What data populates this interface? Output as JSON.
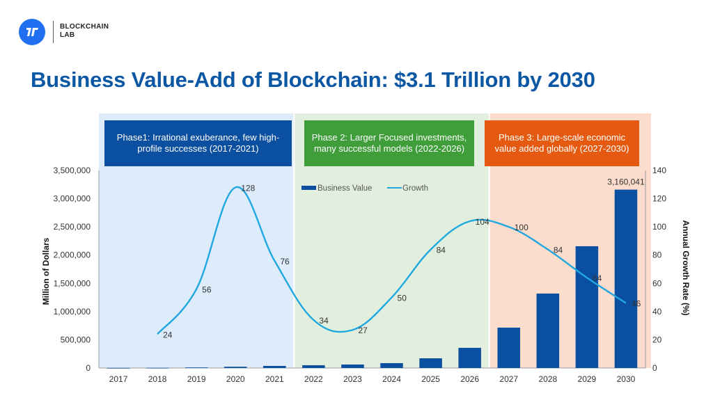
{
  "brand": {
    "logo_icon": "blockchain-lab-logo-icon",
    "line1": "BLOCKCHAIN",
    "line2": "LAB",
    "color": "#1f6ff0"
  },
  "title": "Business Value-Add of Blockchain: $3.1 Trillion by 2030",
  "phases": [
    {
      "label": "Phase1: Irrational exuberance, few high-profile successes (2017-2021)",
      "color": "#0b4fa0",
      "background": "#ddebfb",
      "years": [
        "2017",
        "2021"
      ]
    },
    {
      "label": "Phase 2: Larger Focused investments, many successful models (2022-2026)",
      "color": "#3f9e3a",
      "background": "#e2efdf",
      "years": [
        "2022",
        "2026"
      ]
    },
    {
      "label": "Phase 3: Large-scale economic value added globally (2027-2030)",
      "color": "#e55a10",
      "background": "#fcdccd",
      "years": [
        "2027",
        "2030"
      ]
    }
  ],
  "chart_data": {
    "type": "bar+line",
    "title": "Business Value-Add of Blockchain: $3.1 Trillion by 2030",
    "categories": [
      "2017",
      "2018",
      "2019",
      "2020",
      "2021",
      "2022",
      "2023",
      "2024",
      "2025",
      "2026",
      "2027",
      "2028",
      "2029",
      "2030"
    ],
    "series": [
      {
        "name": "Business Value",
        "type": "bar",
        "axis": "left",
        "color": "#0b4fa0",
        "values": [
          1000,
          3000,
          10000,
          22000,
          37000,
          49000,
          62000,
          86000,
          172000,
          357000,
          715000,
          1319000,
          2157000,
          3160041
        ],
        "data_labels": {
          "2030": "3,160,041"
        }
      },
      {
        "name": "Growth",
        "type": "line",
        "axis": "right",
        "smooth": true,
        "color": "#1fa8df",
        "x": [
          "2018",
          "2019",
          "2020",
          "2021",
          "2022",
          "2023",
          "2024",
          "2025",
          "2026",
          "2027",
          "2028",
          "2029",
          "2030"
        ],
        "values": [
          24,
          56,
          128,
          76,
          34,
          27,
          50,
          84,
          104,
          100,
          84,
          64,
          46
        ],
        "data_labels": [
          "24",
          "56",
          "128",
          "76",
          "34",
          "27",
          "50",
          "84",
          "104",
          "100",
          "84",
          "64",
          "46"
        ]
      }
    ],
    "ylabel": "Million of Dollars",
    "ylabel_right": "Annual Growth Rate (%)",
    "ylim": [
      0,
      3500000
    ],
    "ylim_right": [
      0,
      140
    ],
    "yticks": [
      "0",
      "500,000",
      "1,000,000",
      "1,500,000",
      "2,000,000",
      "2,500,000",
      "3,000,000",
      "3,500,000"
    ],
    "yticks_right": [
      "0",
      "20",
      "40",
      "60",
      "80",
      "100",
      "120",
      "140"
    ],
    "legend": {
      "position": "top-center",
      "items": [
        "Business Value",
        "Growth"
      ]
    },
    "grid": false
  }
}
